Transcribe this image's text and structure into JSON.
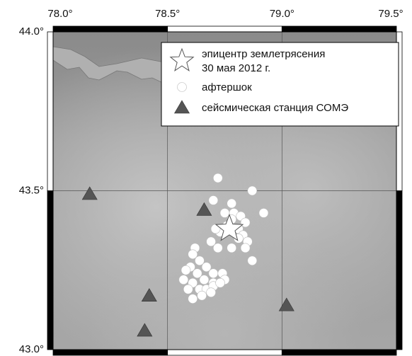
{
  "chart_data": {
    "type": "scatter",
    "xlim": [
      78.0,
      79.5
    ],
    "ylim": [
      43.0,
      44.0
    ],
    "xticks": [
      {
        "value": 78.0,
        "label": "78.0°"
      },
      {
        "value": 78.5,
        "label": "78.5°"
      },
      {
        "value": 79.0,
        "label": "79.0°"
      },
      {
        "value": 79.5,
        "label": "79.5°"
      }
    ],
    "yticks": [
      {
        "value": 43.0,
        "label": "43.0°"
      },
      {
        "value": 43.5,
        "label": "43.5°"
      },
      {
        "value": 44.0,
        "label": "44.0°"
      }
    ],
    "grid": true,
    "legend": "upper right",
    "series": [
      {
        "name": [
          "эпицентр землетрясения",
          "30 мая 2012 г."
        ],
        "marker": "star",
        "color": "#ffffff",
        "x": [
          78.77
        ],
        "y": [
          43.38
        ]
      },
      {
        "name": [
          "афтершок"
        ],
        "marker": "circle",
        "color": "#ffffff",
        "x": [
          78.72,
          78.7,
          78.87,
          78.92,
          78.78,
          78.75,
          78.79,
          78.82,
          78.78,
          78.84,
          78.81,
          78.76,
          78.73,
          78.71,
          78.83,
          78.85,
          78.81,
          78.69,
          78.78,
          78.72,
          78.84,
          78.87,
          78.62,
          78.61,
          78.64,
          78.6,
          78.58,
          78.63,
          78.67,
          78.7,
          78.74,
          78.57,
          78.61,
          78.66,
          78.7,
          78.75,
          78.59,
          78.64,
          78.67,
          78.7,
          78.61,
          78.65,
          78.69,
          78.73
        ],
        "y": [
          43.54,
          43.47,
          43.5,
          43.43,
          43.46,
          43.43,
          43.43,
          43.42,
          43.41,
          43.4,
          43.38,
          43.39,
          43.37,
          43.38,
          43.36,
          43.34,
          43.35,
          43.34,
          43.32,
          43.32,
          43.32,
          43.28,
          43.32,
          43.3,
          43.28,
          43.26,
          43.25,
          43.24,
          43.26,
          43.24,
          43.24,
          43.22,
          43.21,
          43.22,
          43.21,
          43.22,
          43.19,
          43.19,
          43.19,
          43.2,
          43.16,
          43.17,
          43.18,
          43.21
        ]
      },
      {
        "name": [
          "сейсмическая станция СОМЭ"
        ],
        "marker": "triangle",
        "color": "#555555",
        "x": [
          78.16,
          78.66,
          78.42,
          78.4,
          79.02
        ],
        "y": [
          43.49,
          43.44,
          43.17,
          43.06,
          43.14
        ]
      }
    ]
  }
}
